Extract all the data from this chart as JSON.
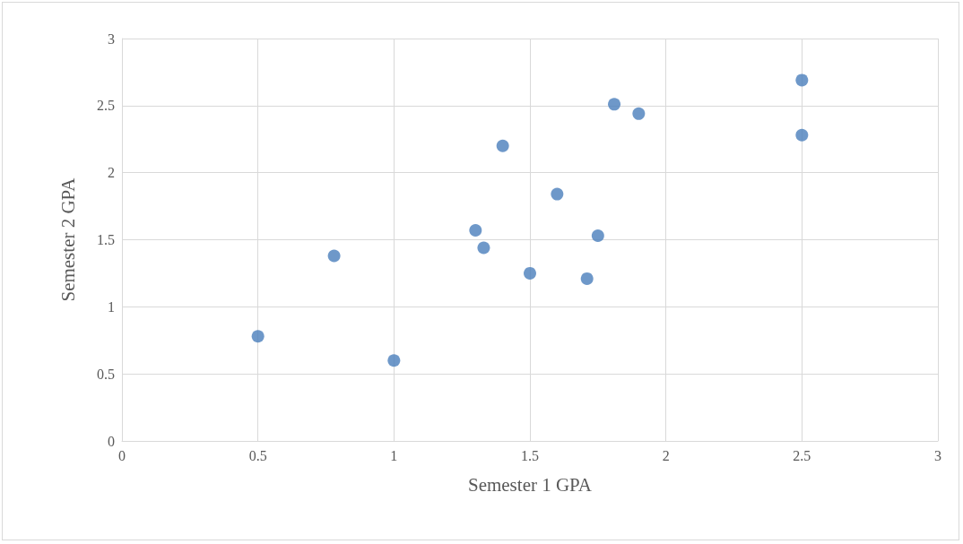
{
  "chart_data": {
    "type": "scatter",
    "xlabel": "Semester 1 GPA",
    "ylabel": "Semester 2 GPA",
    "x": [
      0.5,
      0.78,
      1.0,
      1.3,
      1.33,
      1.4,
      1.5,
      1.6,
      1.71,
      1.75,
      1.81,
      1.9,
      2.5,
      2.5
    ],
    "series": [
      {
        "color": "#4a7ebb",
        "values": [
          0.78,
          1.38,
          0.6,
          1.57,
          1.44,
          2.2,
          1.25,
          1.84,
          1.21,
          1.53,
          2.51,
          2.44,
          2.69,
          2.28
        ]
      }
    ],
    "xlim": [
      0,
      3
    ],
    "xticks": [
      0,
      0.5,
      1,
      1.5,
      2,
      2.5,
      3
    ],
    "ylim": [
      0,
      3
    ],
    "yticks": [
      0,
      0.5,
      1,
      1.5,
      2,
      2.5,
      3
    ],
    "grid": true,
    "marker": "circle"
  }
}
